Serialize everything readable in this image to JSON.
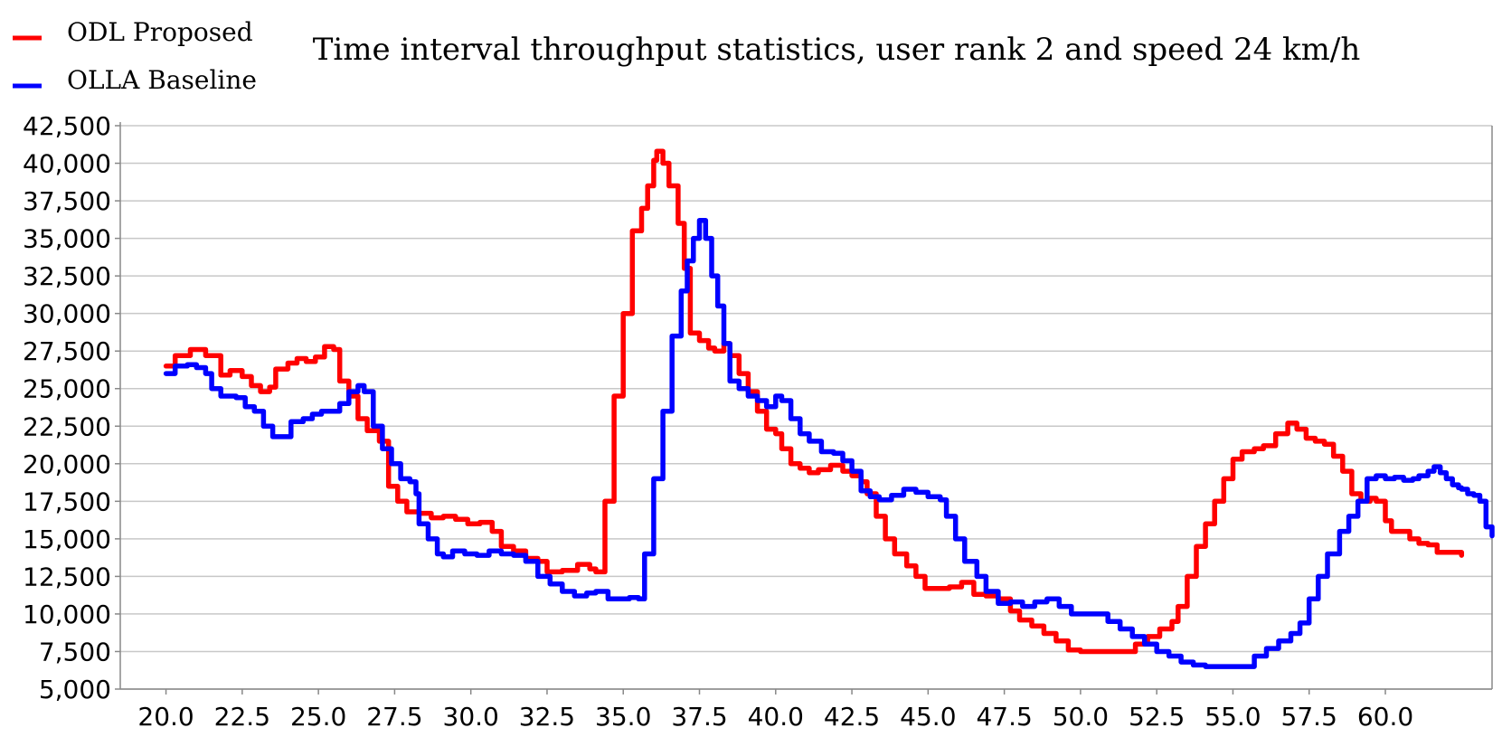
{
  "chart_data": {
    "type": "line",
    "title": "Time interval throughput statistics, user rank 2 and speed 24 km/h",
    "xlabel": "",
    "ylabel": "",
    "xlim": [
      18.5,
      63.5
    ],
    "ylim": [
      5000,
      42500
    ],
    "x_ticks": [
      "20.0",
      "22.5",
      "25.0",
      "27.5",
      "30.0",
      "32.5",
      "35.0",
      "37.5",
      "40.0",
      "42.5",
      "45.0",
      "47.5",
      "50.0",
      "52.5",
      "55.0",
      "57.5",
      "60.0"
    ],
    "y_ticks": [
      "5,000",
      "7,500",
      "10,000",
      "12,500",
      "15,000",
      "17,500",
      "20,000",
      "22,500",
      "25,000",
      "27,500",
      "30,000",
      "32,500",
      "35,000",
      "37,500",
      "40,000",
      "42,500"
    ],
    "grid": true,
    "legend_position": "top-left",
    "series": [
      {
        "name": "ODL Proposed",
        "color": "#ff0000",
        "points": [
          [
            20.0,
            26500
          ],
          [
            20.3,
            27200
          ],
          [
            20.8,
            27600
          ],
          [
            21.3,
            27200
          ],
          [
            21.8,
            25900
          ],
          [
            22.1,
            26200
          ],
          [
            22.5,
            25800
          ],
          [
            22.8,
            25200
          ],
          [
            23.1,
            24800
          ],
          [
            23.4,
            25100
          ],
          [
            23.6,
            26300
          ],
          [
            24.0,
            26700
          ],
          [
            24.3,
            27000
          ],
          [
            24.6,
            26800
          ],
          [
            24.9,
            27100
          ],
          [
            25.2,
            27800
          ],
          [
            25.5,
            27600
          ],
          [
            25.7,
            25500
          ],
          [
            26.0,
            24500
          ],
          [
            26.3,
            23000
          ],
          [
            26.6,
            22200
          ],
          [
            27.0,
            21500
          ],
          [
            27.3,
            18500
          ],
          [
            27.6,
            17500
          ],
          [
            27.9,
            16800
          ],
          [
            28.3,
            16700
          ],
          [
            28.7,
            16400
          ],
          [
            29.1,
            16500
          ],
          [
            29.5,
            16300
          ],
          [
            29.9,
            16000
          ],
          [
            30.3,
            16100
          ],
          [
            30.7,
            15500
          ],
          [
            31.0,
            14500
          ],
          [
            31.4,
            14200
          ],
          [
            31.8,
            13700
          ],
          [
            32.2,
            13500
          ],
          [
            32.5,
            12800
          ],
          [
            33.0,
            12900
          ],
          [
            33.5,
            13300
          ],
          [
            33.9,
            13000
          ],
          [
            34.1,
            12800
          ],
          [
            34.4,
            17500
          ],
          [
            34.7,
            24500
          ],
          [
            35.0,
            30000
          ],
          [
            35.3,
            35500
          ],
          [
            35.6,
            37000
          ],
          [
            35.8,
            38500
          ],
          [
            36.0,
            40200
          ],
          [
            36.1,
            40800
          ],
          [
            36.3,
            40000
          ],
          [
            36.5,
            38500
          ],
          [
            36.8,
            36000
          ],
          [
            37.0,
            33000
          ],
          [
            37.2,
            28700
          ],
          [
            37.5,
            28200
          ],
          [
            37.8,
            27700
          ],
          [
            38.0,
            27500
          ],
          [
            38.3,
            28000
          ],
          [
            38.5,
            27200
          ],
          [
            38.8,
            26000
          ],
          [
            39.1,
            24800
          ],
          [
            39.4,
            23500
          ],
          [
            39.7,
            22300
          ],
          [
            40.0,
            22000
          ],
          [
            40.2,
            21000
          ],
          [
            40.5,
            20000
          ],
          [
            40.8,
            19700
          ],
          [
            41.1,
            19400
          ],
          [
            41.4,
            19600
          ],
          [
            41.8,
            19900
          ],
          [
            42.2,
            19500
          ],
          [
            42.5,
            19200
          ],
          [
            42.8,
            18800
          ],
          [
            43.0,
            18000
          ],
          [
            43.3,
            16500
          ],
          [
            43.6,
            15000
          ],
          [
            43.9,
            14000
          ],
          [
            44.3,
            13200
          ],
          [
            44.6,
            12500
          ],
          [
            44.9,
            11700
          ],
          [
            45.3,
            11700
          ],
          [
            45.7,
            11800
          ],
          [
            46.1,
            12100
          ],
          [
            46.5,
            11300
          ],
          [
            46.9,
            11200
          ],
          [
            47.3,
            11000
          ],
          [
            47.7,
            10200
          ],
          [
            48.0,
            9600
          ],
          [
            48.4,
            9200
          ],
          [
            48.8,
            8700
          ],
          [
            49.2,
            8200
          ],
          [
            49.6,
            7600
          ],
          [
            50.0,
            7500
          ],
          [
            50.5,
            7500
          ],
          [
            51.0,
            7500
          ],
          [
            51.4,
            7500
          ],
          [
            51.8,
            8000
          ],
          [
            52.2,
            8500
          ],
          [
            52.6,
            9000
          ],
          [
            53.0,
            9500
          ],
          [
            53.2,
            10500
          ],
          [
            53.5,
            12500
          ],
          [
            53.8,
            14500
          ],
          [
            54.1,
            16000
          ],
          [
            54.4,
            17500
          ],
          [
            54.7,
            19000
          ],
          [
            55.0,
            20300
          ],
          [
            55.3,
            20800
          ],
          [
            55.7,
            21000
          ],
          [
            56.0,
            21200
          ],
          [
            56.4,
            22000
          ],
          [
            56.8,
            22700
          ],
          [
            57.1,
            22300
          ],
          [
            57.4,
            21700
          ],
          [
            57.7,
            21500
          ],
          [
            58.0,
            21300
          ],
          [
            58.3,
            20500
          ],
          [
            58.6,
            19500
          ],
          [
            58.9,
            18000
          ],
          [
            59.2,
            17500
          ],
          [
            59.5,
            17700
          ],
          [
            59.7,
            17500
          ],
          [
            60.0,
            16200
          ],
          [
            60.2,
            15500
          ],
          [
            60.5,
            15500
          ],
          [
            60.8,
            15000
          ],
          [
            61.1,
            14700
          ],
          [
            61.4,
            14600
          ],
          [
            61.7,
            14100
          ],
          [
            62.0,
            14100
          ],
          [
            62.2,
            14100
          ],
          [
            62.5,
            13900
          ]
        ]
      },
      {
        "name": "OLLA Baseline",
        "color": "#0000ff",
        "points": [
          [
            20.0,
            26000
          ],
          [
            20.3,
            26500
          ],
          [
            20.7,
            26600
          ],
          [
            21.0,
            26400
          ],
          [
            21.3,
            26000
          ],
          [
            21.5,
            25000
          ],
          [
            21.8,
            24500
          ],
          [
            22.3,
            24400
          ],
          [
            22.6,
            23800
          ],
          [
            22.9,
            23500
          ],
          [
            23.2,
            22500
          ],
          [
            23.5,
            21800
          ],
          [
            23.8,
            21800
          ],
          [
            24.1,
            22800
          ],
          [
            24.5,
            23000
          ],
          [
            24.8,
            23300
          ],
          [
            25.1,
            23500
          ],
          [
            25.4,
            23500
          ],
          [
            25.7,
            24000
          ],
          [
            26.0,
            24800
          ],
          [
            26.3,
            25200
          ],
          [
            26.5,
            24800
          ],
          [
            26.8,
            22500
          ],
          [
            27.1,
            21000
          ],
          [
            27.4,
            20000
          ],
          [
            27.7,
            19000
          ],
          [
            28.0,
            18800
          ],
          [
            28.2,
            18000
          ],
          [
            28.3,
            16000
          ],
          [
            28.6,
            15000
          ],
          [
            28.9,
            14000
          ],
          [
            29.1,
            13800
          ],
          [
            29.4,
            14200
          ],
          [
            29.8,
            14000
          ],
          [
            30.2,
            13900
          ],
          [
            30.6,
            14200
          ],
          [
            31.0,
            14000
          ],
          [
            31.4,
            13900
          ],
          [
            31.8,
            13500
          ],
          [
            32.2,
            12500
          ],
          [
            32.6,
            12000
          ],
          [
            33.0,
            11500
          ],
          [
            33.4,
            11200
          ],
          [
            33.8,
            11400
          ],
          [
            34.1,
            11500
          ],
          [
            34.5,
            11000
          ],
          [
            34.9,
            11000
          ],
          [
            35.2,
            11100
          ],
          [
            35.5,
            11000
          ],
          [
            35.7,
            14000
          ],
          [
            36.0,
            19000
          ],
          [
            36.3,
            23500
          ],
          [
            36.6,
            28500
          ],
          [
            36.9,
            31500
          ],
          [
            37.1,
            33500
          ],
          [
            37.3,
            35000
          ],
          [
            37.5,
            36200
          ],
          [
            37.7,
            35000
          ],
          [
            37.9,
            32500
          ],
          [
            38.1,
            30500
          ],
          [
            38.3,
            28000
          ],
          [
            38.5,
            25500
          ],
          [
            38.8,
            25000
          ],
          [
            39.1,
            24500
          ],
          [
            39.4,
            24200
          ],
          [
            39.7,
            23800
          ],
          [
            40.0,
            24500
          ],
          [
            40.2,
            24200
          ],
          [
            40.5,
            23000
          ],
          [
            40.8,
            22000
          ],
          [
            41.1,
            21500
          ],
          [
            41.5,
            20800
          ],
          [
            41.9,
            20700
          ],
          [
            42.2,
            20200
          ],
          [
            42.5,
            19500
          ],
          [
            42.8,
            18200
          ],
          [
            43.1,
            17800
          ],
          [
            43.4,
            17600
          ],
          [
            43.8,
            17900
          ],
          [
            44.2,
            18300
          ],
          [
            44.6,
            18100
          ],
          [
            45.0,
            17800
          ],
          [
            45.4,
            17600
          ],
          [
            45.6,
            16500
          ],
          [
            45.9,
            15000
          ],
          [
            46.2,
            13500
          ],
          [
            46.6,
            12500
          ],
          [
            46.9,
            11500
          ],
          [
            47.3,
            10700
          ],
          [
            47.7,
            10800
          ],
          [
            48.1,
            10500
          ],
          [
            48.5,
            10800
          ],
          [
            48.9,
            11000
          ],
          [
            49.3,
            10500
          ],
          [
            49.7,
            10000
          ],
          [
            50.1,
            10000
          ],
          [
            50.5,
            10000
          ],
          [
            50.9,
            9500
          ],
          [
            51.3,
            9000
          ],
          [
            51.7,
            8500
          ],
          [
            52.1,
            8000
          ],
          [
            52.5,
            7500
          ],
          [
            52.9,
            7200
          ],
          [
            53.3,
            6800
          ],
          [
            53.7,
            6600
          ],
          [
            54.1,
            6500
          ],
          [
            54.5,
            6500
          ],
          [
            54.9,
            6500
          ],
          [
            55.3,
            6500
          ],
          [
            55.7,
            7200
          ],
          [
            56.1,
            7700
          ],
          [
            56.5,
            8200
          ],
          [
            56.9,
            8700
          ],
          [
            57.2,
            9400
          ],
          [
            57.5,
            11000
          ],
          [
            57.8,
            12500
          ],
          [
            58.1,
            14000
          ],
          [
            58.5,
            15500
          ],
          [
            58.8,
            16500
          ],
          [
            59.1,
            17500
          ],
          [
            59.4,
            19000
          ],
          [
            59.7,
            19200
          ],
          [
            60.0,
            19000
          ],
          [
            60.3,
            19100
          ],
          [
            60.6,
            18900
          ],
          [
            60.9,
            19000
          ],
          [
            61.1,
            19200
          ],
          [
            61.4,
            19500
          ],
          [
            61.6,
            19800
          ],
          [
            61.8,
            19400
          ],
          [
            62.0,
            19000
          ],
          [
            62.2,
            18600
          ],
          [
            62.4,
            18400
          ],
          [
            62.5,
            18300
          ],
          [
            62.7,
            18000
          ],
          [
            62.9,
            17900
          ],
          [
            63.1,
            17500
          ],
          [
            63.3,
            15800
          ],
          [
            63.5,
            15200
          ]
        ]
      }
    ]
  }
}
